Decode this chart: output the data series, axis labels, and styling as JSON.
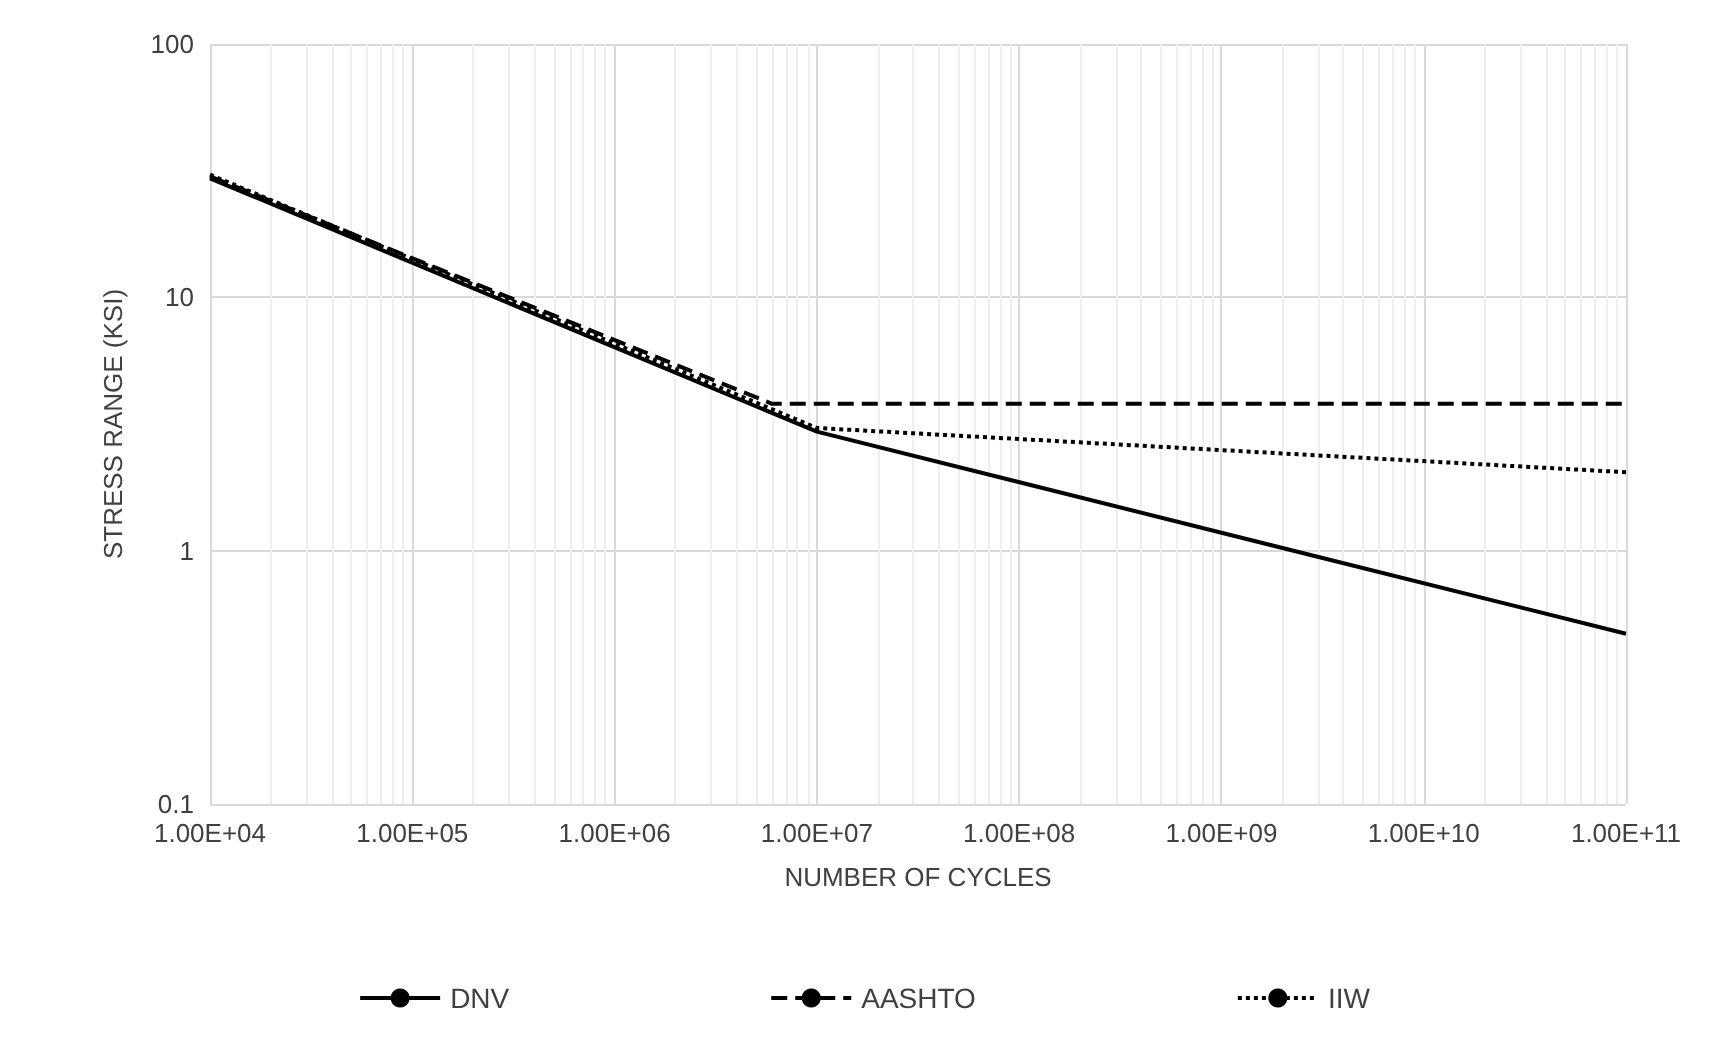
{
  "chart_data": {
    "type": "line",
    "xlabel": "NUMBER OF CYCLES",
    "ylabel": "STRESS RANGE (KSI)",
    "log": "xy",
    "grid": true,
    "legend": "bottom",
    "marker": "none",
    "xlim": [
      10000,
      100000000000
    ],
    "xticks": [
      {
        "value": 10000,
        "label": "1.00E+04"
      },
      {
        "value": 100000,
        "label": "1.00E+05"
      },
      {
        "value": 1000000,
        "label": "1.00E+06"
      },
      {
        "value": 10000000,
        "label": "1.00E+07"
      },
      {
        "value": 100000000,
        "label": "1.00E+08"
      },
      {
        "value": 1000000000,
        "label": "1.00E+09"
      },
      {
        "value": 10000000000,
        "label": "1.00E+10"
      },
      {
        "value": 100000000000,
        "label": "1.00E+11"
      }
    ],
    "ylim": [
      0.1,
      100
    ],
    "yticks": [
      0.1,
      1,
      10,
      100
    ],
    "series": [
      {
        "name": "DNV",
        "color": "#000000",
        "line_style": "solid",
        "x": [
          10000,
          10000000,
          100000000000
        ],
        "values": [
          29.5,
          2.95,
          0.47
        ]
      },
      {
        "name": "AASHTO",
        "color": "#000000",
        "line_style": "dashed",
        "x": [
          10000,
          6000000,
          100000000000
        ],
        "values": [
          30,
          3.8,
          3.8
        ]
      },
      {
        "name": "IIW",
        "color": "#000000",
        "line_style": "dotted",
        "x": [
          10000,
          10000000,
          100000000000
        ],
        "values": [
          30.5,
          3.05,
          2.04
        ]
      }
    ]
  }
}
